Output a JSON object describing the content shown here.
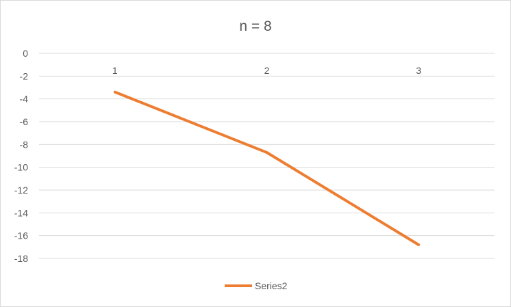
{
  "chart_data": {
    "type": "line",
    "title": "n = 8",
    "xlabel": "",
    "ylabel": "",
    "categories": [
      "1",
      "2",
      "3"
    ],
    "ylim": [
      -18,
      0
    ],
    "yticks": [
      0,
      -2,
      -4,
      -6,
      -8,
      -10,
      -12,
      -14,
      -16,
      -18
    ],
    "ytick_labels": [
      "0",
      "-2",
      "-4",
      "-6",
      "-8",
      "-10",
      "-12",
      "-14",
      "-16",
      "-18"
    ],
    "grid": true,
    "legend_position": "bottom",
    "series": [
      {
        "name": "Series2",
        "color": "#ED7D31",
        "values": [
          -3.4,
          -8.7,
          -16.8
        ]
      }
    ]
  }
}
